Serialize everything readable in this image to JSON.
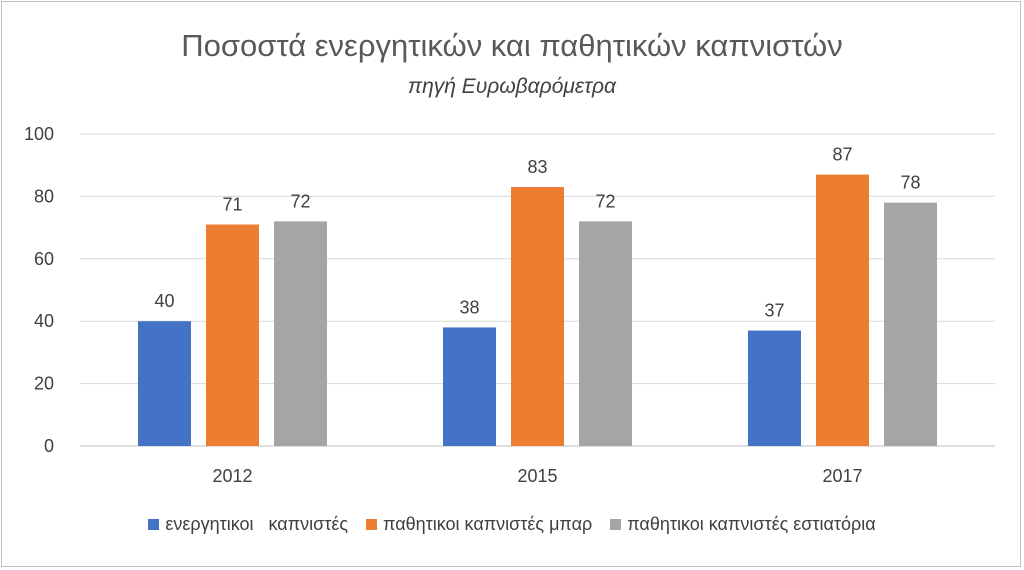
{
  "chart_data": {
    "type": "bar",
    "title": "Ποσοστά ενεργητικών και παθητικών καπνιστών",
    "subtitle": "πηγή Ευρωβαρόμετρα",
    "categories": [
      "2012",
      "2015",
      "2017"
    ],
    "series": [
      {
        "name": "ενεργητικοι   καπνιστές",
        "values": [
          40,
          38,
          37
        ],
        "color": "#4472c4"
      },
      {
        "name": "παθητικοι καπνιστές μπαρ",
        "values": [
          71,
          83,
          87
        ],
        "color": "#ed7d31"
      },
      {
        "name": "παθητικοι καπνιστές εστιατόρια",
        "values": [
          72,
          72,
          78
        ],
        "color": "#a5a5a5"
      }
    ],
    "ylim": [
      0,
      100
    ],
    "yticks": [
      0,
      20,
      40,
      60,
      80,
      100
    ],
    "grid": true,
    "legend": "bottom",
    "data_labels": true
  }
}
